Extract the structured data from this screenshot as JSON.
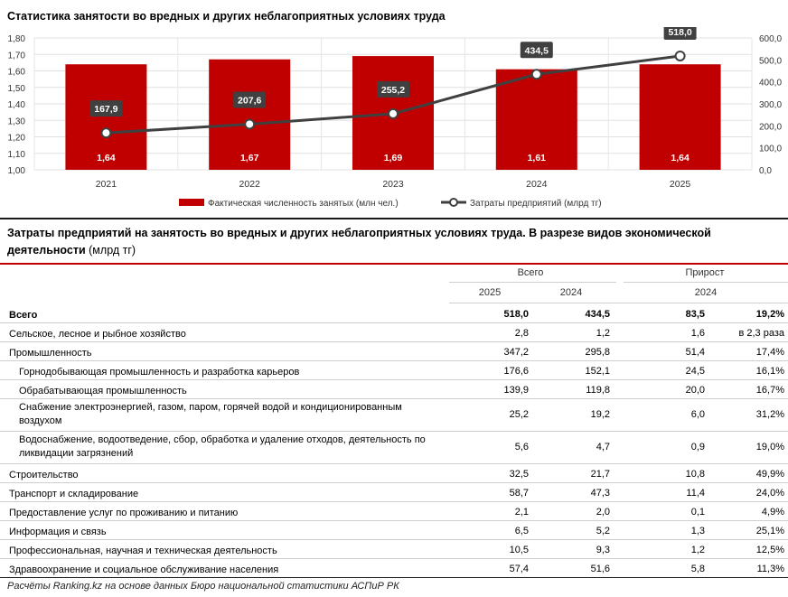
{
  "chart_data": {
    "type": "bar",
    "title": "Статистика занятости во вредных и других неблагоприятных условиях труда",
    "categories": [
      "2021",
      "2022",
      "2023",
      "2024",
      "2025"
    ],
    "series": [
      {
        "name": "Фактическая численность занятых (млн чел.)",
        "type": "bar",
        "axis": "left",
        "color": "#c00000",
        "values": [
          1.64,
          1.67,
          1.69,
          1.61,
          1.64
        ],
        "labels": [
          "1,64",
          "1,67",
          "1,69",
          "1,61",
          "1,64"
        ]
      },
      {
        "name": "Затраты предприятий (млрд тг)",
        "type": "line",
        "axis": "right",
        "color": "#404040",
        "values": [
          167.9,
          207.6,
          255.2,
          434.5,
          518.0
        ],
        "labels": [
          "167,9",
          "207,6",
          "255,2",
          "434,5",
          "518,0"
        ]
      }
    ],
    "ylim_left": [
      1.0,
      1.8
    ],
    "yticks_left": [
      "1,00",
      "1,10",
      "1,20",
      "1,30",
      "1,40",
      "1,50",
      "1,60",
      "1,70",
      "1,80"
    ],
    "ylim_right": [
      0,
      600
    ],
    "yticks_right": [
      "0,0",
      "100,0",
      "200,0",
      "300,0",
      "400,0",
      "500,0",
      "600,0"
    ],
    "grid": true,
    "legend_position": "bottom"
  },
  "table": {
    "title_bold": "Затраты предприятий на занятость во вредных и других неблагоприятных условиях труда. В разрезе видов экономической деятельности",
    "title_unit": " (млрд тг)",
    "group_total": "Всего",
    "group_growth": "Прирост",
    "col_2025": "2025",
    "col_2024": "2024",
    "col_growth_2024": "2024",
    "rows": [
      {
        "label": "Всего",
        "v2025": "518,0",
        "v2024": "434,5",
        "abs": "83,5",
        "pct": "19,2%",
        "bold": true
      },
      {
        "label": "Сельское, лесное и рыбное хозяйство",
        "v2025": "2,8",
        "v2024": "1,2",
        "abs": "1,6",
        "pct": "в 2,3 раза"
      },
      {
        "label": "Промышленность",
        "v2025": "347,2",
        "v2024": "295,8",
        "abs": "51,4",
        "pct": "17,4%"
      },
      {
        "label": "Горнодобывающая промышленность и разработка карьеров",
        "v2025": "176,6",
        "v2024": "152,1",
        "abs": "24,5",
        "pct": "16,1%",
        "indent": true
      },
      {
        "label": "Обрабатывающая промышленность",
        "v2025": "139,9",
        "v2024": "119,8",
        "abs": "20,0",
        "pct": "16,7%",
        "indent": true
      },
      {
        "label": "Снабжение электроэнергией, газом, паром, горячей водой и кондиционированным воздухом",
        "v2025": "25,2",
        "v2024": "19,2",
        "abs": "6,0",
        "pct": "31,2%",
        "indent": true,
        "tall": true
      },
      {
        "label": "Водоснабжение, водоотведение, сбор, обработка и удаление отходов, деятельность по ликвидации загрязнений",
        "v2025": "5,6",
        "v2024": "4,7",
        "abs": "0,9",
        "pct": "19,0%",
        "indent": true,
        "tall": true
      },
      {
        "label": "Строительство",
        "v2025": "32,5",
        "v2024": "21,7",
        "abs": "10,8",
        "pct": "49,9%"
      },
      {
        "label": "Транспорт и складирование",
        "v2025": "58,7",
        "v2024": "47,3",
        "abs": "11,4",
        "pct": "24,0%"
      },
      {
        "label": "Предоставление услуг по проживанию и питанию",
        "v2025": "2,1",
        "v2024": "2,0",
        "abs": "0,1",
        "pct": "4,9%"
      },
      {
        "label": "Информация и связь",
        "v2025": "6,5",
        "v2024": "5,2",
        "abs": "1,3",
        "pct": "25,1%"
      },
      {
        "label": "Профессиональная, научная и техническая деятельность",
        "v2025": "10,5",
        "v2024": "9,3",
        "abs": "1,2",
        "pct": "12,5%"
      },
      {
        "label": "Здравоохранение и социальное обслуживание населения",
        "v2025": "57,4",
        "v2024": "51,6",
        "abs": "5,8",
        "pct": "11,3%"
      }
    ]
  },
  "footer": "Расчёты Ranking.kz на основе данных Бюро национальной статистики АСПиР РК"
}
